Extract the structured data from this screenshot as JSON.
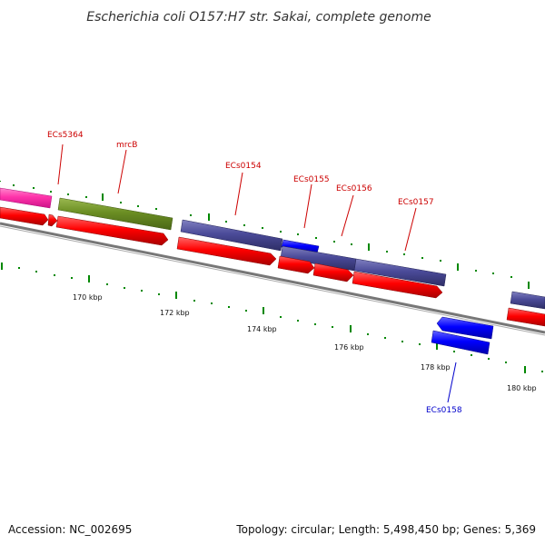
{
  "header": {
    "title": "Escherichia coli O157:H7 str. Sakai, complete genome"
  },
  "footer": {
    "accession": "Accession: NC_002695",
    "summary": "Topology: circular; Length: 5,498,450 bp; Genes: 5,369"
  },
  "tick_labels": [
    "170 kbp",
    "172 kbp",
    "174 kbp",
    "176 kbp",
    "178 kbp",
    "180 kbp"
  ],
  "gene_labels": [
    {
      "text": "ECs5364",
      "color": "#cc0000"
    },
    {
      "text": "mrcB",
      "color": "#cc0000"
    },
    {
      "text": "ECs0154",
      "color": "#cc0000"
    },
    {
      "text": "ECs0155",
      "color": "#cc0000"
    },
    {
      "text": "ECs0156",
      "color": "#cc0000"
    },
    {
      "text": "ECs0157",
      "color": "#cc0000"
    },
    {
      "text": "ECs0158",
      "color": "#0000cc"
    }
  ],
  "colors": {
    "cds_forward": "#ff0000",
    "gene_magenta": "#ff33aa",
    "gene_olive": "#6b8e23",
    "gene_slate": "#4b4b99",
    "gene_blue": "#0000ff",
    "backbone": "#888888",
    "tick_green": "#008800",
    "label_red": "#cc0000",
    "label_blue": "#0000cc"
  }
}
